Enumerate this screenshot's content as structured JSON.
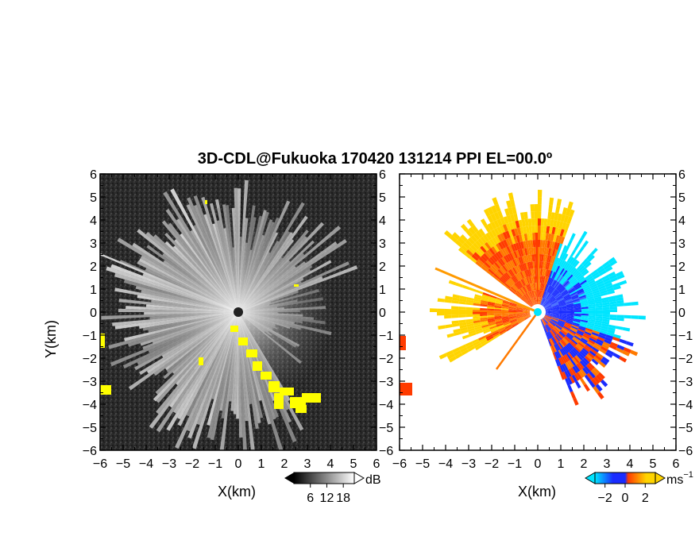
{
  "chart_data": [
    {
      "type": "heatmap",
      "title": "3D-CDL@Fukuoka 170420 131214 PPI EL=00.0º",
      "panel": "left",
      "xlabel": "X(km)",
      "ylabel": "Y(km)",
      "xlim": [
        -6,
        6
      ],
      "ylim": [
        -6,
        6
      ],
      "xticks": [
        "-6",
        "-5",
        "-4",
        "-3",
        "-2",
        "-1",
        "0",
        "1",
        "2",
        "3",
        "4",
        "5",
        "6"
      ],
      "yticks": [
        "6",
        "5",
        "4",
        "3",
        "2",
        "1",
        "0",
        "-1",
        "-2",
        "-3",
        "-4",
        "-5",
        "-6"
      ],
      "colorbar": {
        "unit": "dB",
        "ticks": [
          "6",
          "12",
          "18"
        ],
        "range": [
          0,
          22
        ]
      },
      "colors": {
        "low": "#1a1a1a",
        "high": "#ffffff",
        "hardtarget": "#ffff00"
      }
    },
    {
      "type": "heatmap",
      "panel": "right",
      "xlabel": "X(km)",
      "xlim": [
        -6,
        6
      ],
      "ylim": [
        -6,
        6
      ],
      "xticks": [
        "-6",
        "-5",
        "-4",
        "-3",
        "-2",
        "-1",
        "0",
        "1",
        "2",
        "3",
        "4",
        "5",
        "6"
      ],
      "yticks": [
        "6",
        "5",
        "4",
        "3",
        "2",
        "1",
        "0",
        "-1",
        "-2",
        "-3",
        "-4",
        "-5",
        "-6"
      ],
      "colorbar": {
        "unit": "ms",
        "unit_exp": "−1",
        "ticks": [
          "−2",
          "0",
          "2"
        ],
        "range": [
          -3,
          3
        ]
      },
      "colors": {
        "neg_strong": "#1a2cff",
        "neg_weak": "#00e5ff",
        "pos_weak": "#ff3b00",
        "pos_strong": "#ffd400"
      }
    }
  ]
}
